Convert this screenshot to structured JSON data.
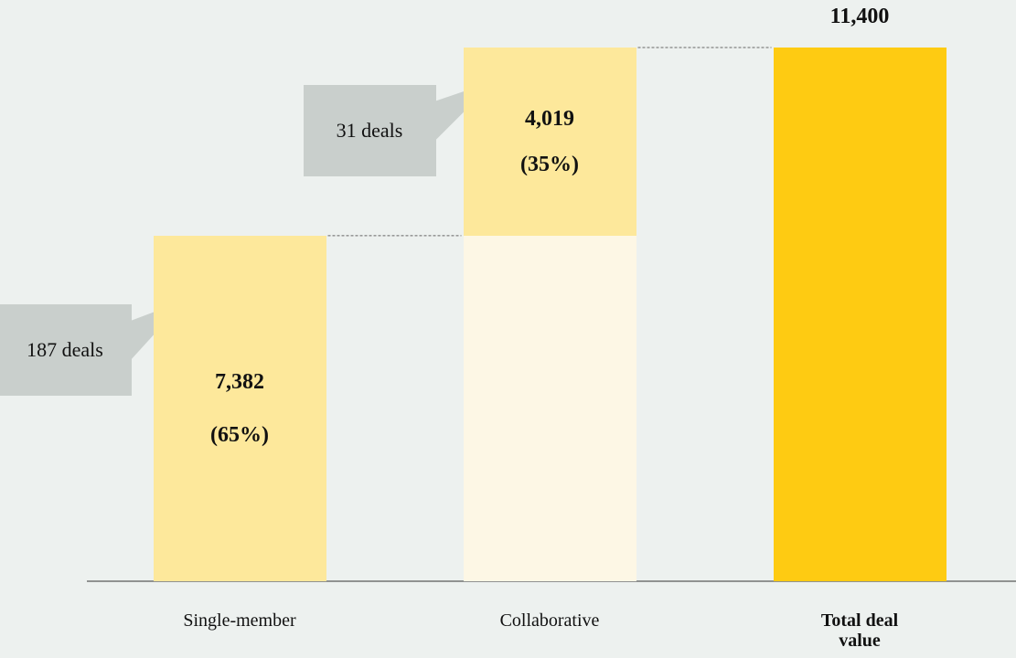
{
  "chart_data": {
    "type": "waterfall",
    "categories": [
      "Single-member",
      "Collaborative",
      "Total deal value"
    ],
    "bar_types": [
      "delta",
      "delta",
      "total"
    ],
    "values": [
      7382,
      4019,
      11400
    ],
    "value_labels": [
      "7,382",
      "4,019",
      "11,400"
    ],
    "shares": [
      65,
      35
    ],
    "share_labels": [
      "(65%)",
      "(35%)"
    ],
    "deals": [
      187,
      31
    ],
    "deal_labels": [
      "187 deals",
      "31 deals"
    ],
    "colors": [
      "#fde89b",
      "#fde89b",
      "#fecb12"
    ]
  }
}
